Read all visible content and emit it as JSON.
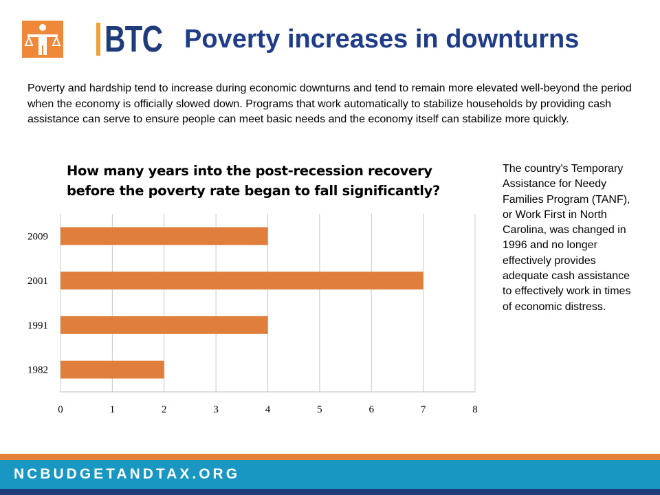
{
  "header": {
    "logo_text": "BTC",
    "title": "Poverty increases in downturns"
  },
  "intro_text": "Poverty and hardship tend to increase during economic downturns and tend to remain more elevated well-beyond the period when the economy is officially slowed down. Programs that work automatically to stabilize households by providing cash assistance can serve to ensure people can meet basic needs and the economy itself can stabilize more quickly.",
  "side_note": "The country's Temporary Assistance for Needy Families Program (TANF), or Work First in North Carolina, was changed in 1996 and no longer effectively provides adequate cash assistance to effectively work in times of economic distress.",
  "footer": {
    "url": "NCBUDGETANDTAX.ORG"
  },
  "colors": {
    "bar": "#e07f3c",
    "title": "#1f3c88",
    "footer_blue": "#1797c2",
    "footer_orange": "#e5803a",
    "footer_navy": "#1f3c7a"
  },
  "chart_data": {
    "type": "bar",
    "orientation": "horizontal",
    "title": "How many years into the post-recession recovery before the poverty rate began to fall significantly?",
    "categories": [
      "2009",
      "2001",
      "1991",
      "1982"
    ],
    "values": [
      4,
      7,
      4,
      2
    ],
    "xlim": [
      0,
      8
    ],
    "xticks": [
      0,
      1,
      2,
      3,
      4,
      5,
      6,
      7,
      8
    ],
    "grid": "vertical",
    "legend": "none"
  }
}
